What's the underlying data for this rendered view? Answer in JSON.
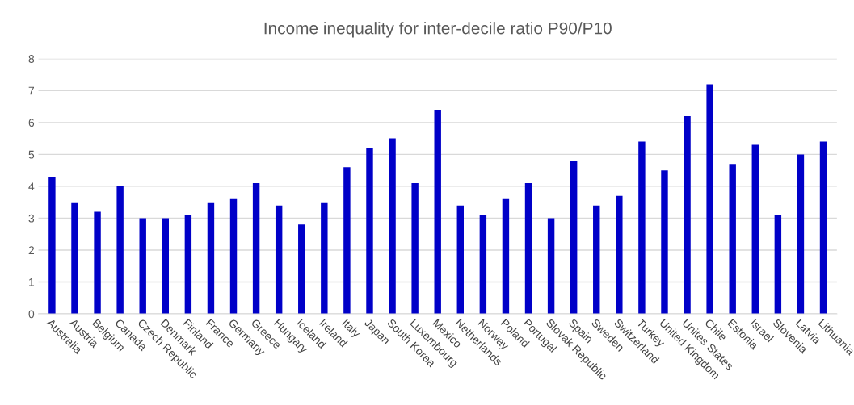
{
  "chart_data": {
    "type": "bar",
    "title": "Income inequality for inter-decile ratio P90/P10",
    "categories": [
      "Australia",
      "Austria",
      "Belgium",
      "Canada",
      "Czech Republic",
      "Denmark",
      "Finland",
      "France",
      "Germany",
      "Greece",
      "Hungary",
      "Iceland",
      "Ireland",
      "Italy",
      "Japan",
      "South Korea",
      "Luxembourg",
      "Mexico",
      "Netherlands",
      "Norway",
      "Poland",
      "Portugal",
      "Slovak Republic",
      "Spain",
      "Sweden",
      "Switzerland",
      "Turkey",
      "United Kingdom",
      "Unites States",
      "Chile",
      "Estonia",
      "Israel",
      "Slovenia",
      "Latvia",
      "Lithuania"
    ],
    "values": [
      4.3,
      3.5,
      3.2,
      4.0,
      3.0,
      3.0,
      3.1,
      3.5,
      3.6,
      4.1,
      3.4,
      2.8,
      3.5,
      4.6,
      5.2,
      5.5,
      4.1,
      6.4,
      3.4,
      3.1,
      3.6,
      4.1,
      3.0,
      4.8,
      3.4,
      3.7,
      5.4,
      4.5,
      6.2,
      7.2,
      4.7,
      5.3,
      3.1,
      5.0,
      5.4
    ],
    "color": "#0000c8",
    "ylim": [
      0,
      8
    ],
    "yticks": [
      0,
      1,
      2,
      3,
      4,
      5,
      6,
      7,
      8
    ],
    "grid": "y",
    "legend": false
  }
}
